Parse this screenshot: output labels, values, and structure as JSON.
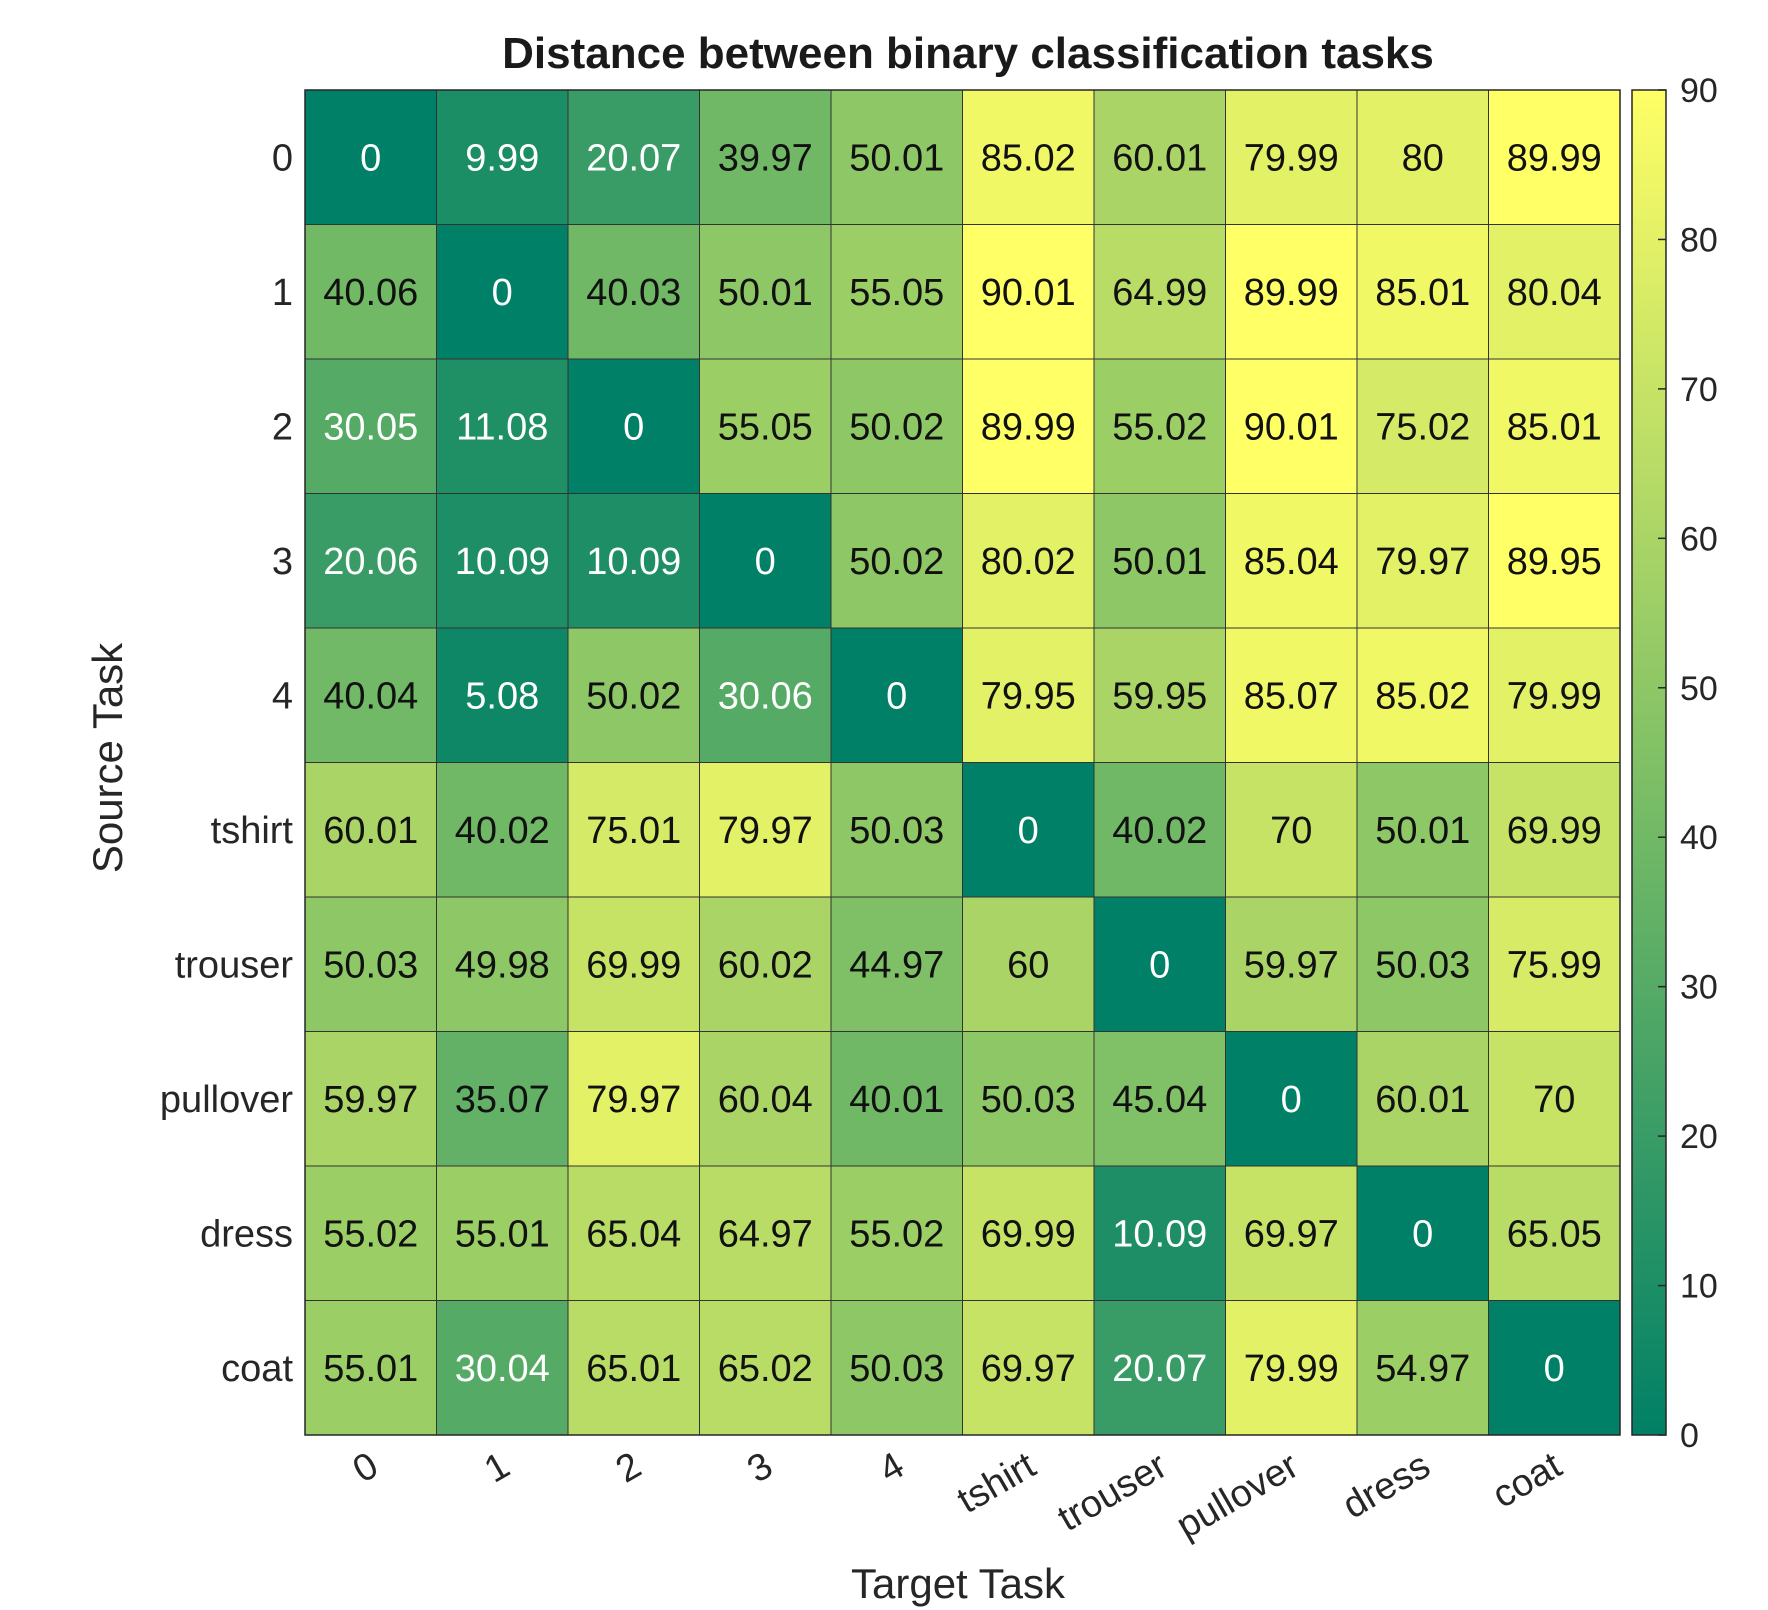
{
  "chart_data": {
    "type": "heatmap",
    "title": "Distance between binary classification tasks",
    "xlabel": "Target Task",
    "ylabel": "Source Task",
    "x_categories": [
      "0",
      "1",
      "2",
      "3",
      "4",
      "tshirt",
      "trouser",
      "pullover",
      "dress",
      "coat"
    ],
    "y_categories": [
      "0",
      "1",
      "2",
      "3",
      "4",
      "tshirt",
      "trouser",
      "pullover",
      "dress",
      "coat"
    ],
    "values": [
      [
        "0",
        "9.99",
        "20.07",
        "39.97",
        "50.01",
        "85.02",
        "60.01",
        "79.99",
        "80",
        "89.99"
      ],
      [
        "40.06",
        "0",
        "40.03",
        "50.01",
        "55.05",
        "90.01",
        "64.99",
        "89.99",
        "85.01",
        "80.04"
      ],
      [
        "30.05",
        "11.08",
        "0",
        "55.05",
        "50.02",
        "89.99",
        "55.02",
        "90.01",
        "75.02",
        "85.01"
      ],
      [
        "20.06",
        "10.09",
        "10.09",
        "0",
        "50.02",
        "80.02",
        "50.01",
        "85.04",
        "79.97",
        "89.95"
      ],
      [
        "40.04",
        "5.08",
        "50.02",
        "30.06",
        "0",
        "79.95",
        "59.95",
        "85.07",
        "85.02",
        "79.99"
      ],
      [
        "60.01",
        "40.02",
        "75.01",
        "79.97",
        "50.03",
        "0",
        "40.02",
        "70",
        "50.01",
        "69.99"
      ],
      [
        "50.03",
        "49.98",
        "69.99",
        "60.02",
        "44.97",
        "60",
        "0",
        "59.97",
        "50.03",
        "75.99"
      ],
      [
        "59.97",
        "35.07",
        "79.97",
        "60.04",
        "40.01",
        "50.03",
        "45.04",
        "0",
        "60.01",
        "70"
      ],
      [
        "55.02",
        "55.01",
        "65.04",
        "64.97",
        "55.02",
        "69.99",
        "10.09",
        "69.97",
        "0",
        "65.05"
      ],
      [
        "55.01",
        "30.04",
        "65.01",
        "65.02",
        "50.03",
        "69.97",
        "20.07",
        "79.99",
        "54.97",
        "0"
      ]
    ],
    "colorbar": {
      "min": 0,
      "max": 90,
      "ticks": [
        "0",
        "10",
        "20",
        "30",
        "40",
        "50",
        "60",
        "70",
        "80",
        "90"
      ]
    },
    "colormap": "summer",
    "color_low": "#008066",
    "color_high": "#FFFF66",
    "grid": true
  }
}
